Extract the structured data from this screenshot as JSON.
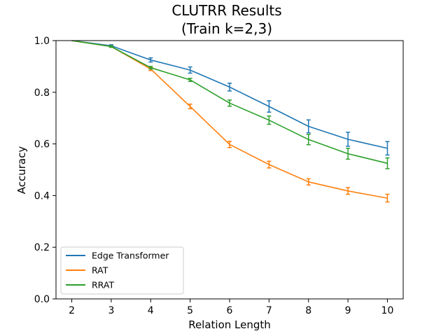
{
  "chart_data": {
    "type": "line",
    "title": [
      "CLUTRR Results",
      "(Train k=2,3)"
    ],
    "xlabel": "Relation Length",
    "ylabel": "Accuracy",
    "x": [
      2,
      3,
      4,
      5,
      6,
      7,
      8,
      9,
      10
    ],
    "x_ticks": [
      "2",
      "3",
      "4",
      "5",
      "6",
      "7",
      "8",
      "9",
      "10"
    ],
    "xlim": [
      1.6,
      10.4
    ],
    "ylim": [
      0.0,
      1.0
    ],
    "y_ticks": [
      "0.0",
      "0.2",
      "0.4",
      "0.6",
      "0.8",
      "1.0"
    ],
    "grid": false,
    "legend_position": "lower-left",
    "series": [
      {
        "name": "Edge Transformer",
        "color": "#1f77b4",
        "values": [
          1.0,
          0.98,
          0.925,
          0.886,
          0.82,
          0.745,
          0.668,
          0.618,
          0.583
        ],
        "errors": [
          0.0,
          0.004,
          0.008,
          0.012,
          0.015,
          0.022,
          0.025,
          0.027,
          0.026
        ]
      },
      {
        "name": "RAT",
        "color": "#ff7f0e",
        "values": [
          1.0,
          0.977,
          0.89,
          0.745,
          0.598,
          0.52,
          0.453,
          0.418,
          0.39
        ],
        "errors": [
          0.0,
          0.003,
          0.006,
          0.009,
          0.012,
          0.013,
          0.012,
          0.013,
          0.015
        ]
      },
      {
        "name": "RRAT",
        "color": "#2ca02c",
        "values": [
          1.0,
          0.977,
          0.895,
          0.848,
          0.758,
          0.692,
          0.617,
          0.562,
          0.525
        ],
        "errors": [
          0.0,
          0.003,
          0.005,
          0.006,
          0.012,
          0.016,
          0.02,
          0.021,
          0.021
        ]
      }
    ]
  }
}
